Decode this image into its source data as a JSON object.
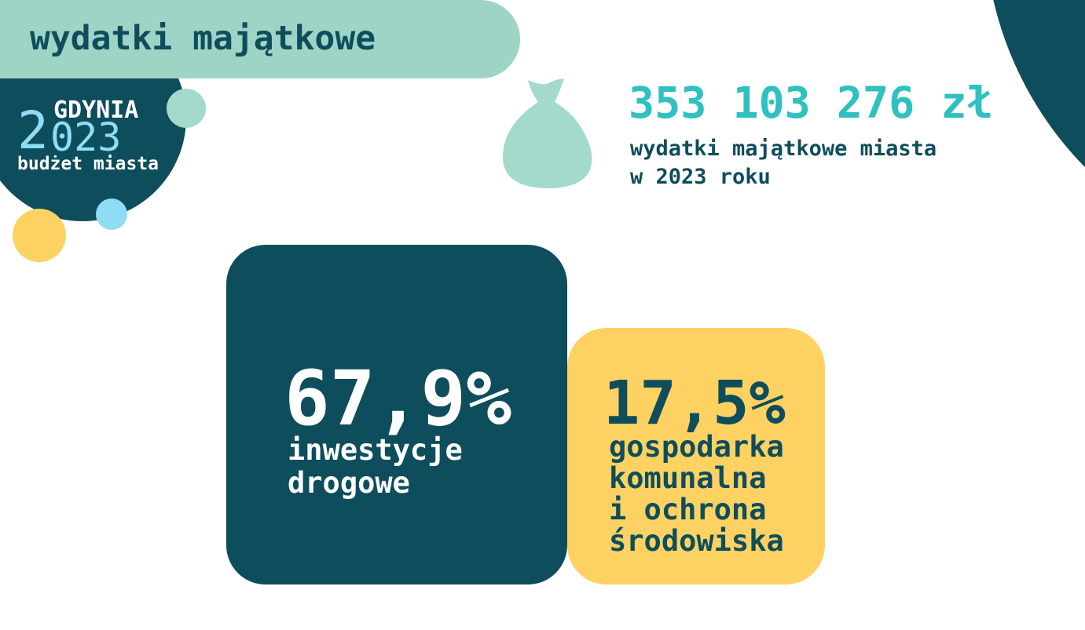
{
  "header": {
    "title": "wydatki majątkowe"
  },
  "logo": {
    "city": "GDYNIA",
    "year_first_digit": "2",
    "year_rest": "023",
    "subtitle": "budżet miasta"
  },
  "summary": {
    "amount": "353 103 276 zł",
    "description": "wydatki majątkowe miasta\nw 2023 roku",
    "icon": "money-bag-icon"
  },
  "stats": [
    {
      "percent": "67,9%",
      "label": "inwestycje\ndrogowe"
    },
    {
      "percent": "17,5%",
      "label": "gospodarka\nkomunalna\ni ochrona\nśrodowiska"
    }
  ],
  "colors": {
    "dark_teal": "#0e4d5c",
    "mint": "#9dd4c6",
    "turquoise": "#2fc0c0",
    "yellow": "#fdd262",
    "light_blue": "#8fdcf5"
  }
}
